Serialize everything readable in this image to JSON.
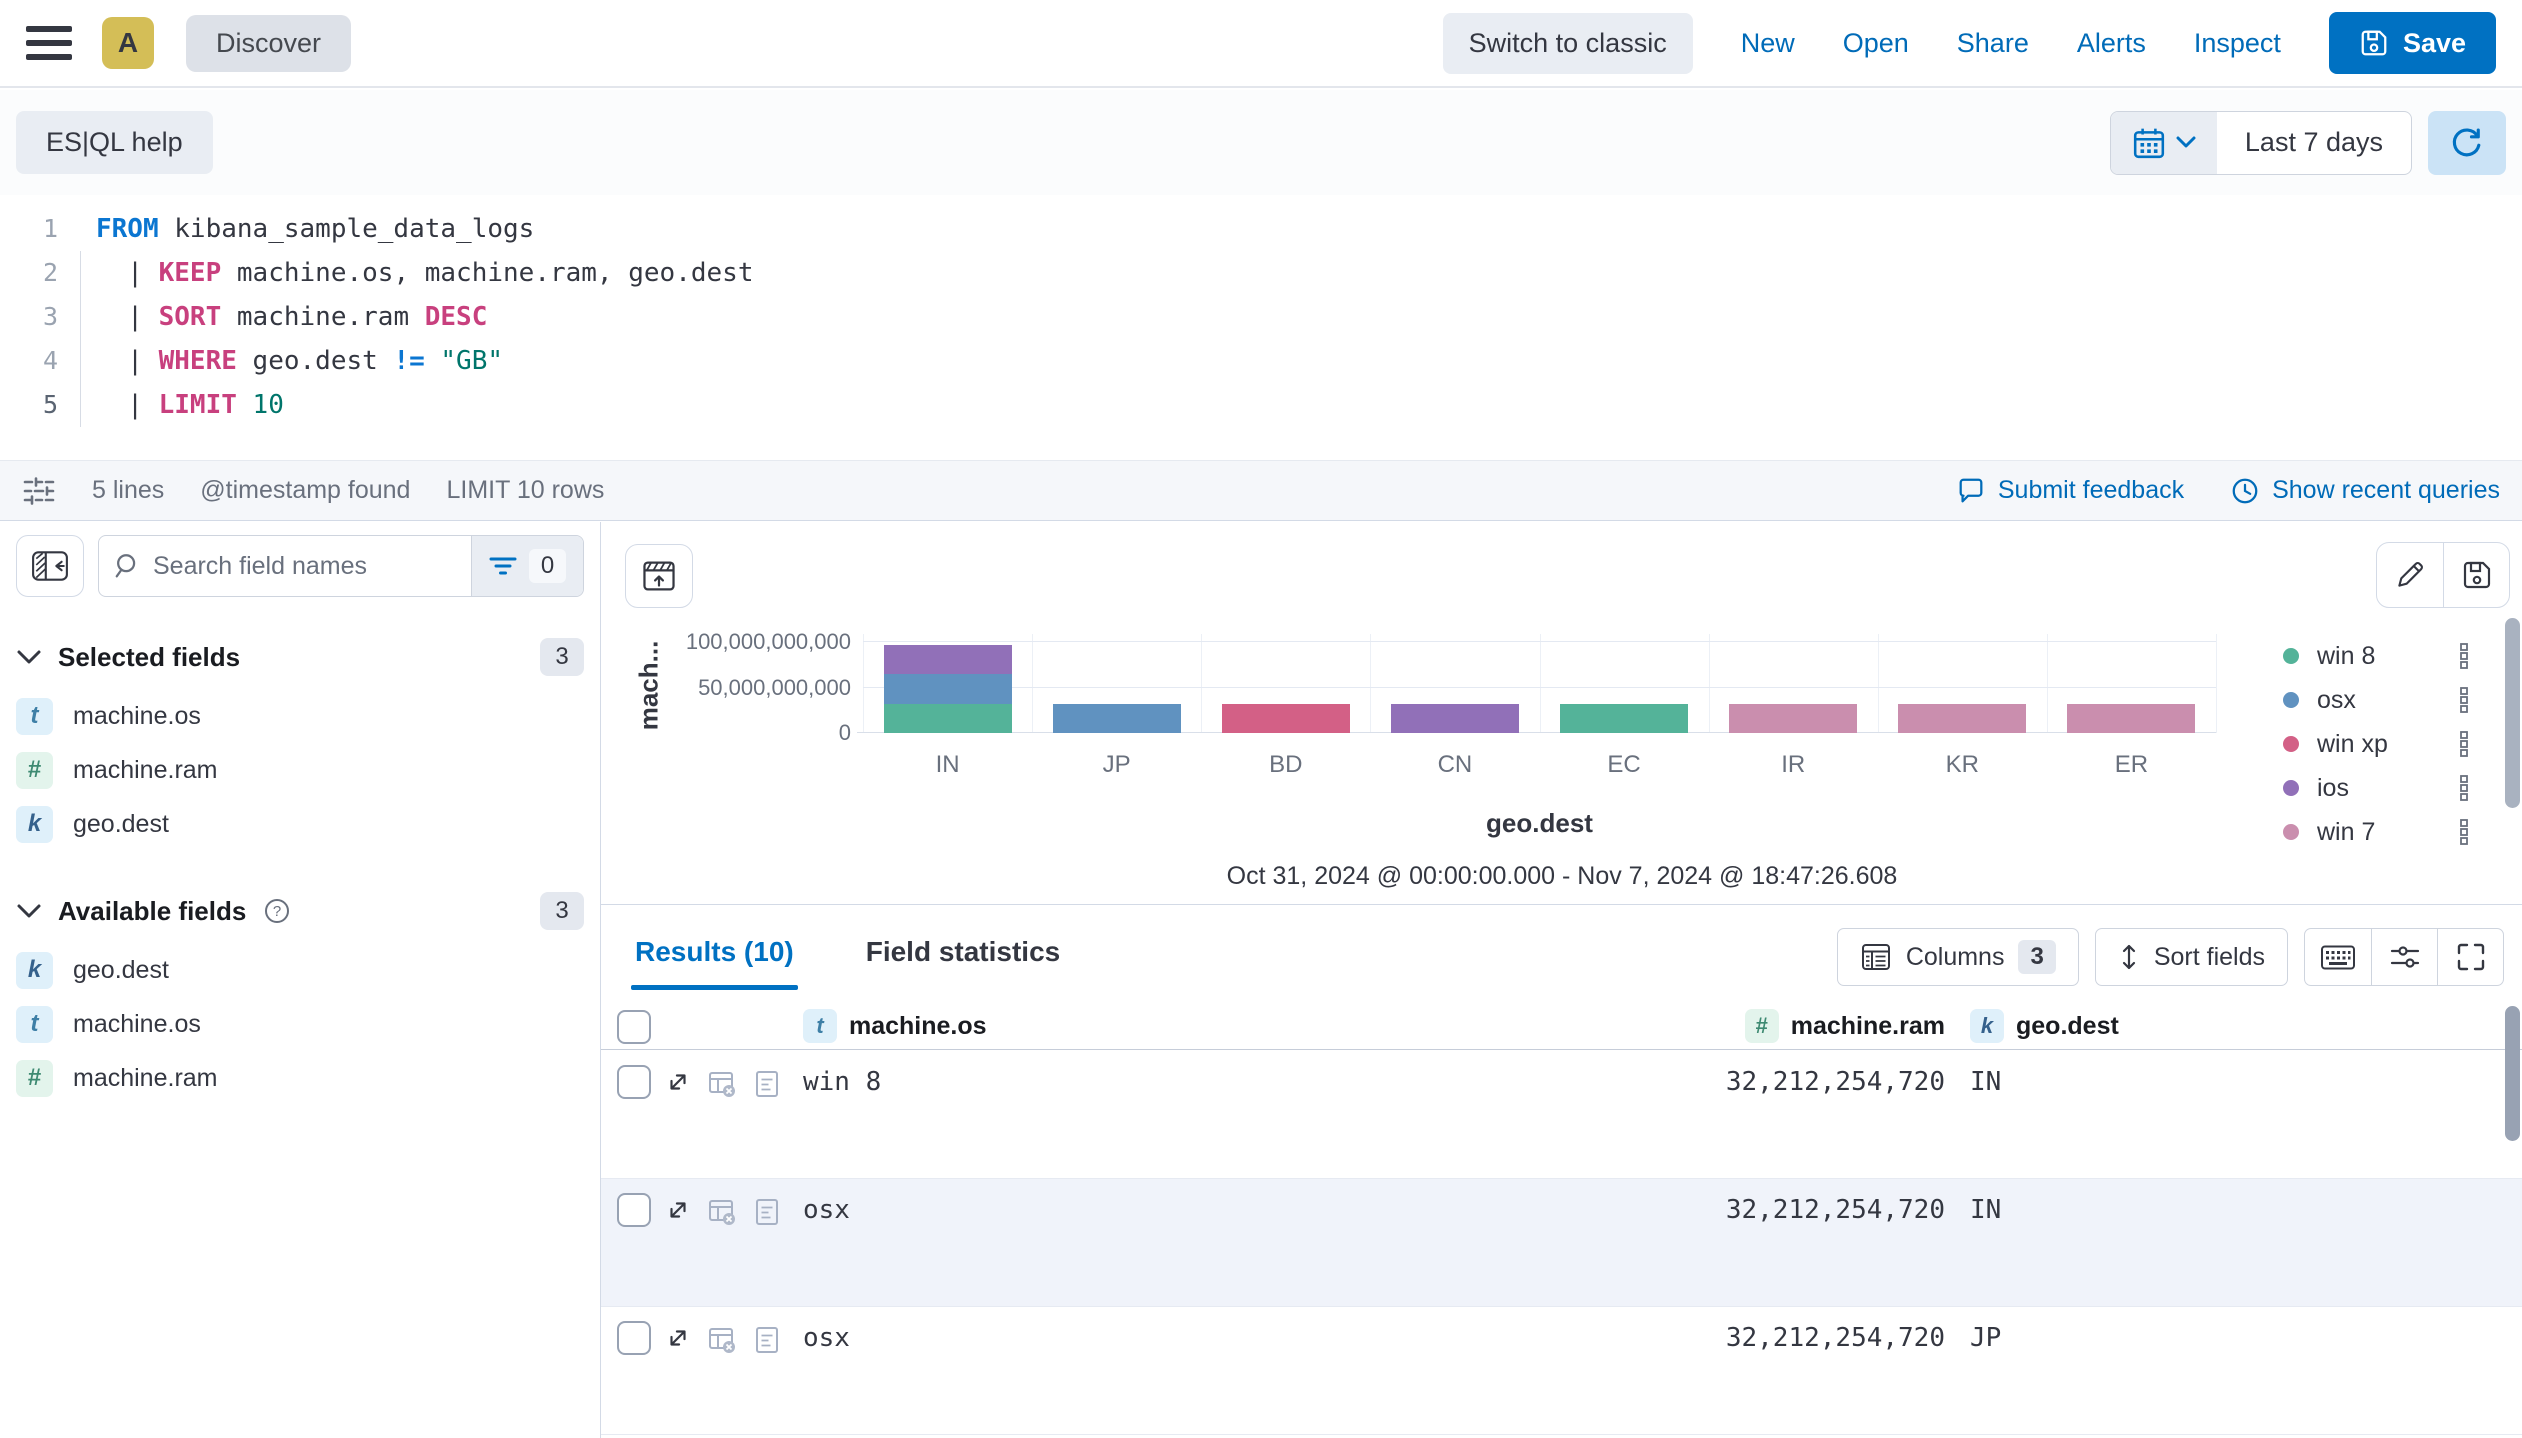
{
  "header": {
    "app_badge": "A",
    "breadcrumb": "Discover",
    "switch_to_classic": "Switch to classic",
    "links": [
      "New",
      "Open",
      "Share",
      "Alerts",
      "Inspect"
    ],
    "save_label": "Save"
  },
  "query_bar": {
    "help_button": "ES|QL help",
    "time_range_label": "Last 7 days"
  },
  "editor": {
    "lines": [
      {
        "num": "1",
        "active": false,
        "tokens": [
          {
            "t": "FROM ",
            "c": "kwb"
          },
          {
            "t": "kibana_sample_data_logs",
            "c": "plain"
          }
        ]
      },
      {
        "num": "2",
        "active": false,
        "tokens": [
          {
            "t": "  | ",
            "c": "pipe"
          },
          {
            "t": "KEEP ",
            "c": "kwp"
          },
          {
            "t": "machine.os, machine.ram, geo.dest",
            "c": "plain"
          }
        ]
      },
      {
        "num": "3",
        "active": false,
        "tokens": [
          {
            "t": "  | ",
            "c": "pipe"
          },
          {
            "t": "SORT ",
            "c": "kwp"
          },
          {
            "t": "machine.ram ",
            "c": "plain"
          },
          {
            "t": "DESC",
            "c": "kwp"
          }
        ]
      },
      {
        "num": "4",
        "active": false,
        "tokens": [
          {
            "t": "  | ",
            "c": "pipe"
          },
          {
            "t": "WHERE ",
            "c": "kwp"
          },
          {
            "t": "geo.dest ",
            "c": "plain"
          },
          {
            "t": "!= ",
            "c": "op"
          },
          {
            "t": "\"GB\"",
            "c": "teal"
          }
        ]
      },
      {
        "num": "5",
        "active": true,
        "tokens": [
          {
            "t": "  | ",
            "c": "pipe"
          },
          {
            "t": "LIMIT ",
            "c": "kwp"
          },
          {
            "t": "10",
            "c": "teal"
          }
        ]
      }
    ]
  },
  "status_bar": {
    "lines_count": "5 lines",
    "timestamp_info": "@timestamp found",
    "limit_info": "LIMIT 10 rows",
    "submit_feedback": "Submit feedback",
    "show_recent_queries": "Show recent queries"
  },
  "sidebar": {
    "search_placeholder": "Search field names",
    "filter_count": "0",
    "selected": {
      "title": "Selected fields",
      "count": "3",
      "items": [
        {
          "token": "t",
          "name": "machine.os"
        },
        {
          "token": "#",
          "name": "machine.ram"
        },
        {
          "token": "k",
          "name": "geo.dest"
        }
      ]
    },
    "available": {
      "title": "Available fields",
      "count": "3",
      "items": [
        {
          "token": "k",
          "name": "geo.dest"
        },
        {
          "token": "t",
          "name": "machine.os"
        },
        {
          "token": "#",
          "name": "machine.ram"
        }
      ]
    }
  },
  "chart_data": {
    "type": "bar",
    "stacked": true,
    "categories": [
      "IN",
      "JP",
      "BD",
      "CN",
      "EC",
      "IR",
      "KR",
      "ER"
    ],
    "series": [
      {
        "name": "win 8",
        "color": "#54B399",
        "values": [
          32212254720,
          0,
          0,
          0,
          32212254720,
          0,
          0,
          0
        ]
      },
      {
        "name": "osx",
        "color": "#6092C0",
        "values": [
          32212254720,
          32212254720,
          0,
          0,
          0,
          0,
          0,
          0
        ]
      },
      {
        "name": "win xp",
        "color": "#D36086",
        "values": [
          0,
          0,
          32212254720,
          0,
          0,
          0,
          0,
          0
        ]
      },
      {
        "name": "ios",
        "color": "#9170B8",
        "values": [
          32212254720,
          0,
          0,
          32212254720,
          0,
          0,
          0,
          0
        ]
      },
      {
        "name": "win 7",
        "color": "#CA8EAE",
        "values": [
          0,
          0,
          0,
          0,
          0,
          32212254720,
          32212254720,
          32212254720
        ]
      }
    ],
    "xlabel": "geo.dest",
    "ylabel": "mach...",
    "y_ticks": [
      {
        "value": 0,
        "label": "0"
      },
      {
        "value": 50000000000,
        "label": "50,000,000,000"
      },
      {
        "value": 100000000000,
        "label": "100,000,000,000"
      }
    ],
    "ylim": [
      0,
      104500000000
    ],
    "grid": true,
    "legend_position": "right",
    "footer": "Oct 31, 2024 @ 00:00:00.000 - Nov 7, 2024 @ 18:47:26.608"
  },
  "results": {
    "tab_results": "Results (10)",
    "tab_field_stats": "Field statistics",
    "columns_label": "Columns",
    "columns_count": "3",
    "sort_label": "Sort fields",
    "table": {
      "headers": [
        {
          "token": "t",
          "name": "machine.os"
        },
        {
          "token": "#",
          "name": "machine.ram"
        },
        {
          "token": "k",
          "name": "geo.dest"
        }
      ],
      "rows": [
        {
          "machine_os": "win 8",
          "machine_ram": "32,212,254,720",
          "geo_dest": "IN"
        },
        {
          "machine_os": "osx",
          "machine_ram": "32,212,254,720",
          "geo_dest": "IN"
        },
        {
          "machine_os": "osx",
          "machine_ram": "32,212,254,720",
          "geo_dest": "JP"
        }
      ]
    }
  },
  "colors": {
    "primary_button": "#0071C2",
    "link": "#006BB8",
    "active_tab": "#0071C2",
    "avatar_badge": "#D4BE57",
    "row_stripe": "#F0F3FA"
  }
}
